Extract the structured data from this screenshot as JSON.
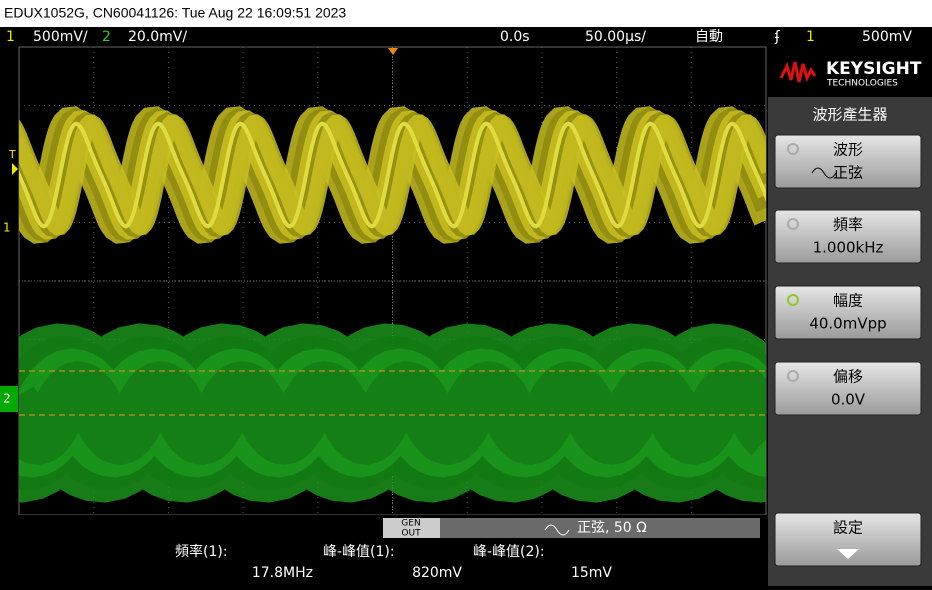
{
  "header": {
    "title": "EDUX1052G, CN60041126: Tue Aug 22 16:09:51 2023"
  },
  "status": {
    "ch1_num": "1",
    "ch1_scale": "500mV/",
    "ch2_num": "2",
    "ch2_scale": "20.0mV/",
    "delay": "0.0s",
    "timebase": "50.00µs/",
    "mode": "自動",
    "trig_src": "1",
    "trig_level": "500mV"
  },
  "markers": {
    "trigger": "T",
    "ch1": "1",
    "ch2": "2"
  },
  "brand": {
    "name": "KEYSIGHT",
    "sub": "TECHNOLOGIES"
  },
  "menu": {
    "title": "波形產生器",
    "keys": [
      {
        "label": "波形",
        "value": "正弦"
      },
      {
        "label": "頻率",
        "value": "1.000kHz"
      },
      {
        "label": "幅度",
        "value": "40.0mVpp"
      },
      {
        "label": "偏移",
        "value": "0.0V"
      },
      {
        "label": "設定"
      }
    ]
  },
  "gen": {
    "badge_top": "GEN",
    "badge_bottom": "OUT",
    "status": "正弦, 50 Ω"
  },
  "measurements": [
    {
      "label": "頻率(1):",
      "value": "17.8MHz"
    },
    {
      "label": "峰-峰值(1):",
      "value": "820mV"
    },
    {
      "label": "峰-峰值(2):",
      "value": "15mV"
    }
  ]
}
